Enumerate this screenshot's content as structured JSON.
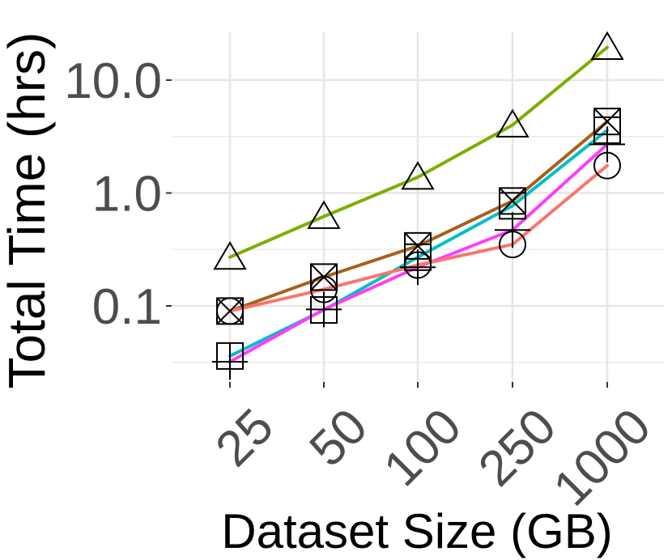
{
  "chart_data": {
    "type": "line",
    "title": "",
    "xlabel": "Dataset Size (GB)",
    "ylabel": "Total Time (hrs)",
    "yscale": "log",
    "grid": true,
    "categories": [
      "25",
      "50",
      "100",
      "250",
      "1000"
    ],
    "y_ticks": [
      {
        "value": 0.1,
        "label": "0.1"
      },
      {
        "value": 1,
        "label": "1.0"
      },
      {
        "value": 10,
        "label": "10.0"
      }
    ],
    "ylim": [
      0.021,
      25
    ],
    "series": [
      {
        "color": "#7CAE00",
        "marker": "triangle",
        "values": [
          0.27,
          0.62,
          1.38,
          4.0,
          19.5
        ]
      },
      {
        "color": "#A6611A",
        "marker": "square-x",
        "values": [
          0.09,
          0.18,
          0.34,
          0.85,
          4.3
        ]
      },
      {
        "color": "#00BFC4",
        "marker": "square",
        "values": [
          0.036,
          0.092,
          0.27,
          0.77,
          3.6
        ]
      },
      {
        "color": "#FF3DFF",
        "marker": "plus",
        "values": [
          0.032,
          0.093,
          0.22,
          0.47,
          2.7
        ]
      },
      {
        "color": "#F8766D",
        "marker": "circle",
        "values": [
          0.09,
          0.14,
          0.23,
          0.35,
          1.75
        ]
      }
    ]
  }
}
